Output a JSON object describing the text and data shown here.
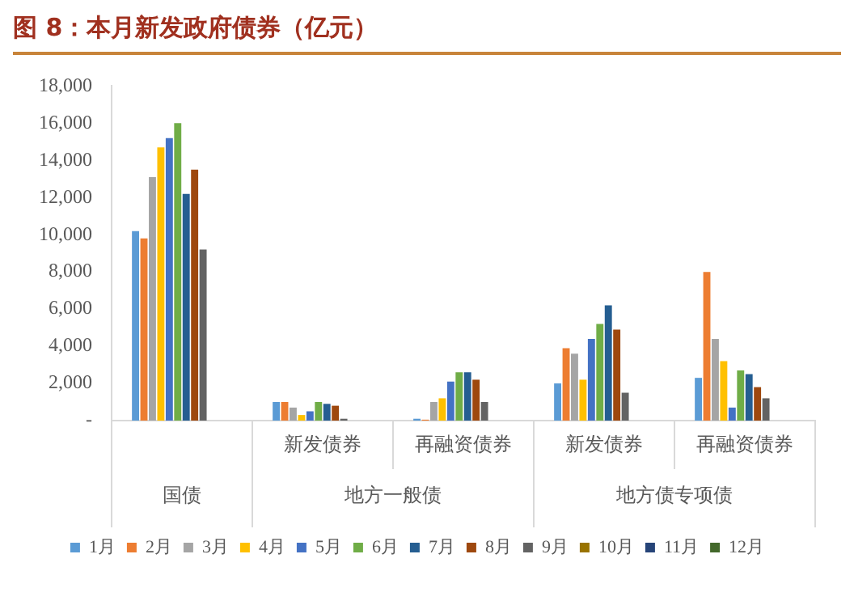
{
  "chart_data": {
    "type": "bar",
    "title": "图 8：本月新发政府债券（亿元）",
    "categories": [
      null,
      "新发债券",
      "再融资债券",
      "新发债券",
      "再融资债券"
    ],
    "annotations": [
      "国债",
      "地方一般债",
      "地方债专项债"
    ],
    "series": [
      {
        "name": "1月",
        "color": "#5b9bd5",
        "values": [
          10200,
          1000,
          100,
          2000,
          2300
        ]
      },
      {
        "name": "2月",
        "color": "#ed7d31",
        "values": [
          9800,
          1000,
          50,
          3900,
          8000
        ]
      },
      {
        "name": "3月",
        "color": "#a5a5a5",
        "values": [
          13100,
          700,
          1000,
          3600,
          4400
        ]
      },
      {
        "name": "4月",
        "color": "#ffc000",
        "values": [
          14700,
          300,
          1200,
          2200,
          3200
        ]
      },
      {
        "name": "5月",
        "color": "#4472c4",
        "values": [
          15200,
          500,
          2100,
          4400,
          700
        ]
      },
      {
        "name": "6月",
        "color": "#70ad47",
        "values": [
          16000,
          1000,
          2600,
          5200,
          2700
        ]
      },
      {
        "name": "7月",
        "color": "#255e91",
        "values": [
          12200,
          900,
          2600,
          6200,
          2500
        ]
      },
      {
        "name": "8月",
        "color": "#9e480e",
        "values": [
          13500,
          800,
          2200,
          4900,
          1800
        ]
      },
      {
        "name": "9月",
        "color": "#636363",
        "values": [
          9200,
          100,
          1000,
          1500,
          1200
        ]
      },
      {
        "name": "10月",
        "color": "#997300",
        "values": [
          null,
          null,
          null,
          null,
          null
        ]
      },
      {
        "name": "11月",
        "color": "#264478",
        "values": [
          null,
          null,
          null,
          null,
          null
        ]
      },
      {
        "name": "12月",
        "color": "#43682b",
        "values": [
          null,
          null,
          null,
          null,
          null
        ]
      }
    ],
    "ylim": [
      0,
      18000
    ],
    "yticks": [
      {
        "value": 0,
        "label": "-"
      },
      {
        "value": 2000,
        "label": "2,000"
      },
      {
        "value": 4000,
        "label": "4,000"
      },
      {
        "value": 6000,
        "label": "6,000"
      },
      {
        "value": 8000,
        "label": "8,000"
      },
      {
        "value": 10000,
        "label": "10,000"
      },
      {
        "value": 12000,
        "label": "12,000"
      },
      {
        "value": 14000,
        "label": "14,000"
      },
      {
        "value": 16000,
        "label": "16,000"
      },
      {
        "value": 18000,
        "label": "18,000"
      }
    ],
    "grid": false,
    "legend": "bottom"
  }
}
